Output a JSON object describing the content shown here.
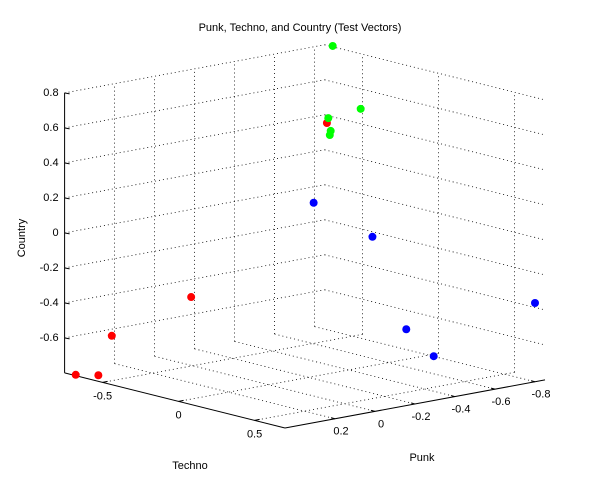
{
  "chart_data": {
    "type": "scatter3d",
    "title": "Punk, Techno, and Country (Test Vectors)",
    "xlabel": "Punk",
    "ylabel": "Techno",
    "zlabel": "Country",
    "xlim": [
      -0.85,
      0.45
    ],
    "ylim": [
      -0.75,
      0.7
    ],
    "zlim": [
      -0.8,
      0.8
    ],
    "xticks": [
      0.2,
      0,
      -0.2,
      -0.4,
      -0.6,
      -0.8
    ],
    "yticks": [
      -0.5,
      0,
      0.5
    ],
    "zticks": [
      -0.6,
      -0.4,
      -0.2,
      0,
      0.2,
      0.4,
      0.6,
      0.8
    ],
    "grid": true,
    "series": [
      {
        "color": "#ff0000",
        "x": [
          -0.36,
          0.22,
          0.29,
          0.44,
          0.38
        ],
        "y": [
          -0.09,
          -0.22,
          -0.65,
          -0.69,
          -0.62
        ],
        "z": [
          0.6,
          -0.3,
          -0.6,
          -0.8,
          -0.8
        ]
      },
      {
        "color": "#00ff00",
        "x": [
          -0.86,
          -0.42,
          -0.62,
          -0.28,
          -0.23
        ],
        "y": [
          -0.71,
          -0.16,
          -0.21,
          0.04,
          0.1
        ],
        "z": [
          0.8,
          0.6,
          0.6,
          0.6,
          0.6
        ]
      },
      {
        "color": "#0000ff",
        "x": [
          -0.21,
          -0.39,
          -0.8,
          -0.43,
          -0.4
        ],
        "y": [
          0.02,
          0.17,
          0.7,
          0.34,
          0.56
        ],
        "z": [
          0.2,
          0,
          -0.35,
          -0.5,
          -0.6
        ]
      }
    ]
  }
}
